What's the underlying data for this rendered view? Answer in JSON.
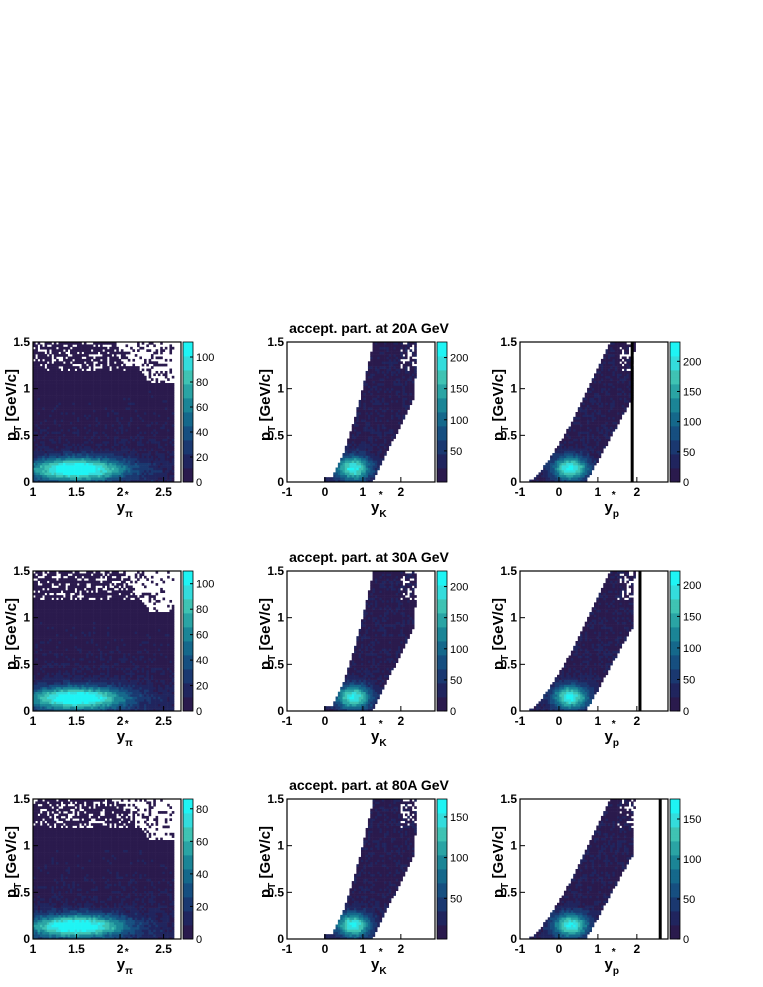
{
  "colors": {
    "background": "#ffffff",
    "palette": [
      "#2a1a4d",
      "#20255e",
      "#1a3870",
      "#164f80",
      "#15688b",
      "#1b8596",
      "#2aa4a4",
      "#3fc3b3",
      "#34dcdc",
      "#1ff4f4"
    ],
    "cut_line": "#000000"
  },
  "chart_data": [
    {
      "type": "heatmap",
      "row": 0,
      "col": 0,
      "particle": "pion",
      "xlim": [
        1,
        2.7
      ],
      "xticks": [
        1,
        1.5,
        2,
        2.5
      ],
      "ylim": [
        0,
        1.5
      ],
      "yticks": [
        0,
        0.5,
        1,
        1.5
      ],
      "ylabel": "p",
      "ylabel_sub": "T",
      "ylabel_unit": "[GeV/c]",
      "xlabel": "y",
      "xlabel_sub": "π",
      "xlabel_sup": "*",
      "z_max": 112,
      "z_ticks": [
        0,
        20,
        40,
        60,
        80,
        100
      ],
      "cut_x": null
    },
    {
      "type": "heatmap",
      "row": 0,
      "col": 1,
      "particle": "kaon",
      "title": "accept. part. at 20A GeV",
      "xlim": [
        -1,
        2.9
      ],
      "xticks": [
        -1,
        0,
        1,
        2
      ],
      "ylim": [
        0,
        1.5
      ],
      "yticks": [
        0,
        0.5,
        1,
        1.5
      ],
      "ylabel": "p",
      "ylabel_sub": "T",
      "ylabel_unit": "[GeV/c]",
      "xlabel": "y",
      "xlabel_sub": "K",
      "xlabel_sup": "*",
      "z_max": 225,
      "z_ticks": [
        50,
        100,
        150,
        200
      ],
      "cut_x": null
    },
    {
      "type": "heatmap",
      "row": 0,
      "col": 2,
      "particle": "proton",
      "xlim": [
        -1,
        2.8
      ],
      "xticks": [
        -1,
        0,
        1,
        2
      ],
      "ylim": [
        0,
        1.5
      ],
      "yticks": [
        0,
        0.5,
        1,
        1.5
      ],
      "ylabel": "p",
      "ylabel_sub": "T",
      "ylabel_unit": "[GeV/c]",
      "xlabel": "y",
      "xlabel_sub": "p",
      "xlabel_sup": "*",
      "z_max": 232,
      "z_ticks": [
        0,
        50,
        100,
        150,
        200
      ],
      "cut_x": 1.88
    },
    {
      "type": "heatmap",
      "row": 1,
      "col": 0,
      "particle": "pion",
      "xlim": [
        1,
        2.7
      ],
      "xticks": [
        1,
        1.5,
        2,
        2.5
      ],
      "ylim": [
        0,
        1.5
      ],
      "yticks": [
        0,
        0.5,
        1,
        1.5
      ],
      "ylabel": "p",
      "ylabel_sub": "T",
      "ylabel_unit": "[GeV/c]",
      "xlabel": "y",
      "xlabel_sub": "π",
      "xlabel_sup": "*",
      "z_max": 110,
      "z_ticks": [
        0,
        20,
        40,
        60,
        80,
        100
      ],
      "cut_x": null
    },
    {
      "type": "heatmap",
      "row": 1,
      "col": 1,
      "particle": "kaon",
      "title": "accept. part. at 30A GeV",
      "xlim": [
        -1,
        2.9
      ],
      "xticks": [
        -1,
        0,
        1,
        2
      ],
      "ylim": [
        0,
        1.5
      ],
      "yticks": [
        0,
        0.5,
        1,
        1.5
      ],
      "ylabel": "p",
      "ylabel_sub": "T",
      "ylabel_unit": "[GeV/c]",
      "xlabel": "y",
      "xlabel_sub": "K",
      "xlabel_sup": "*",
      "z_max": 225,
      "z_ticks": [
        0,
        50,
        100,
        150,
        200
      ],
      "cut_x": null
    },
    {
      "type": "heatmap",
      "row": 1,
      "col": 2,
      "particle": "proton",
      "xlim": [
        -1,
        2.8
      ],
      "xticks": [
        -1,
        0,
        1,
        2
      ],
      "ylim": [
        0,
        1.5
      ],
      "yticks": [
        0,
        0.5,
        1,
        1.5
      ],
      "ylabel": "p",
      "ylabel_sub": "T",
      "ylabel_unit": "[GeV/c]",
      "xlabel": "y",
      "xlabel_sub": "p",
      "xlabel_sup": "*",
      "z_max": 222,
      "z_ticks": [
        0,
        50,
        100,
        150,
        200
      ],
      "cut_x": 2.08
    },
    {
      "type": "heatmap",
      "row": 2,
      "col": 0,
      "particle": "pion",
      "xlim": [
        1,
        2.7
      ],
      "xticks": [
        1,
        1.5,
        2,
        2.5
      ],
      "ylim": [
        0,
        1.5
      ],
      "yticks": [
        0,
        0.5,
        1,
        1.5
      ],
      "ylabel": "p",
      "ylabel_sub": "T",
      "ylabel_unit": "[GeV/c]",
      "xlabel": "y",
      "xlabel_sub": "π",
      "xlabel_sup": "*",
      "z_max": 86,
      "z_ticks": [
        0,
        20,
        40,
        60,
        80
      ],
      "cut_x": null
    },
    {
      "type": "heatmap",
      "row": 2,
      "col": 1,
      "particle": "kaon",
      "title": "accept. part. at 80A GeV",
      "xlim": [
        -1,
        2.9
      ],
      "xticks": [
        -1,
        0,
        1,
        2
      ],
      "ylim": [
        0,
        1.5
      ],
      "yticks": [
        0,
        0.5,
        1,
        1.5
      ],
      "ylabel": "p",
      "ylabel_sub": "T",
      "ylabel_unit": "[GeV/c]",
      "xlabel": "y",
      "xlabel_sub": "K",
      "xlabel_sup": "*",
      "z_max": 172,
      "z_ticks": [
        50,
        100,
        150
      ],
      "cut_x": null
    },
    {
      "type": "heatmap",
      "row": 2,
      "col": 2,
      "particle": "proton",
      "xlim": [
        -1,
        2.8
      ],
      "xticks": [
        -1,
        0,
        1,
        2
      ],
      "ylim": [
        0,
        1.5
      ],
      "yticks": [
        0,
        0.5,
        1,
        1.5
      ],
      "ylabel": "p",
      "ylabel_sub": "T",
      "ylabel_unit": "[GeV/c]",
      "xlabel": "y",
      "xlabel_sub": "p",
      "xlabel_sup": "*",
      "z_max": 175,
      "z_ticks": [
        0,
        50,
        100,
        150
      ],
      "cut_x": 2.6
    }
  ]
}
